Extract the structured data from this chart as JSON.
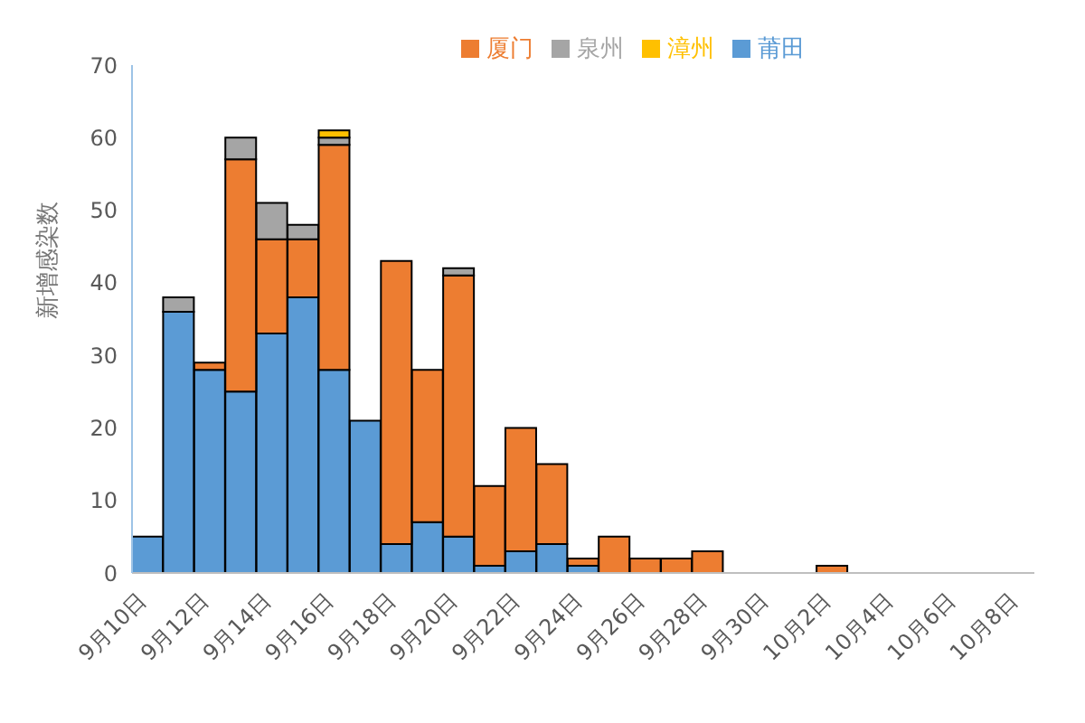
{
  "chart_data": {
    "type": "bar",
    "stacked": true,
    "ylabel": "新增感染数",
    "categories": [
      "9月10日",
      null,
      "9月12日",
      null,
      "9月14日",
      null,
      "9月16日",
      null,
      "9月18日",
      null,
      "9月20日",
      null,
      "9月22日",
      null,
      "9月24日",
      null,
      "9月26日",
      null,
      "9月28日",
      null,
      "9月30日",
      null,
      "10月2日",
      null,
      "10月4日",
      null,
      "10月6日",
      null,
      "10月8日"
    ],
    "series": [
      {
        "name": "莆田",
        "color": "#5b9bd5",
        "values": [
          5,
          36,
          28,
          25,
          33,
          38,
          28,
          21,
          4,
          7,
          5,
          1,
          3,
          4,
          1,
          0,
          0,
          0,
          0,
          0,
          0,
          0,
          0,
          0,
          0,
          0,
          0,
          0,
          0
        ]
      },
      {
        "name": "厦门",
        "color": "#ed7d31",
        "values": [
          0,
          0,
          1,
          32,
          13,
          8,
          31,
          0,
          39,
          21,
          36,
          11,
          17,
          11,
          1,
          5,
          2,
          2,
          3,
          0,
          0,
          0,
          1,
          0,
          0,
          0,
          0,
          0,
          0
        ]
      },
      {
        "name": "泉州",
        "color": "#a5a5a5",
        "values": [
          0,
          2,
          0,
          3,
          5,
          2,
          1,
          0,
          0,
          0,
          1,
          0,
          0,
          0,
          0,
          0,
          0,
          0,
          0,
          0,
          0,
          0,
          0,
          0,
          0,
          0,
          0,
          0,
          0
        ]
      },
      {
        "name": "漳州",
        "color": "#ffc000",
        "values": [
          0,
          0,
          0,
          0,
          0,
          0,
          1,
          0,
          0,
          0,
          0,
          0,
          0,
          0,
          0,
          0,
          0,
          0,
          0,
          0,
          0,
          0,
          0,
          0,
          0,
          0,
          0,
          0,
          0
        ]
      }
    ],
    "ylim": [
      0,
      70
    ],
    "yticks": [
      0,
      10,
      20,
      30,
      40,
      50,
      60,
      70
    ],
    "grid": false,
    "legend": "top"
  }
}
